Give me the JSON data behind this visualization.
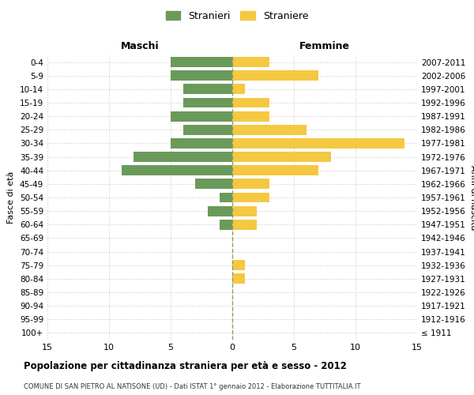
{
  "age_groups": [
    "0-4",
    "5-9",
    "10-14",
    "15-19",
    "20-24",
    "25-29",
    "30-34",
    "35-39",
    "40-44",
    "45-49",
    "50-54",
    "55-59",
    "60-64",
    "65-69",
    "70-74",
    "75-79",
    "80-84",
    "85-89",
    "90-94",
    "95-99",
    "100+"
  ],
  "birth_years": [
    "2007-2011",
    "2002-2006",
    "1997-2001",
    "1992-1996",
    "1987-1991",
    "1982-1986",
    "1977-1981",
    "1972-1976",
    "1967-1971",
    "1962-1966",
    "1957-1961",
    "1952-1956",
    "1947-1951",
    "1942-1946",
    "1937-1941",
    "1932-1936",
    "1927-1931",
    "1922-1926",
    "1917-1921",
    "1912-1916",
    "≤ 1911"
  ],
  "maschi": [
    5,
    5,
    4,
    4,
    5,
    4,
    5,
    8,
    9,
    3,
    1,
    2,
    1,
    0,
    0,
    0,
    0,
    0,
    0,
    0,
    0
  ],
  "femmine": [
    3,
    7,
    1,
    3,
    3,
    6,
    14,
    8,
    7,
    3,
    3,
    2,
    2,
    0,
    0,
    1,
    1,
    0,
    0,
    0,
    0
  ],
  "maschi_color": "#6a9a5a",
  "femmine_color": "#f5c842",
  "title": "Popolazione per cittadinanza straniera per età e sesso - 2012",
  "subtitle": "COMUNE DI SAN PIETRO AL NATISONE (UD) - Dati ISTAT 1° gennaio 2012 - Elaborazione TUTTITALIA.IT",
  "xlabel_left": "Maschi",
  "xlabel_right": "Femmine",
  "ylabel_left": "Fasce di età",
  "ylabel_right": "Anni di nascita",
  "xlim": 15,
  "legend_stranieri": "Stranieri",
  "legend_straniere": "Straniere",
  "background_color": "#ffffff",
  "grid_color": "#cccccc"
}
